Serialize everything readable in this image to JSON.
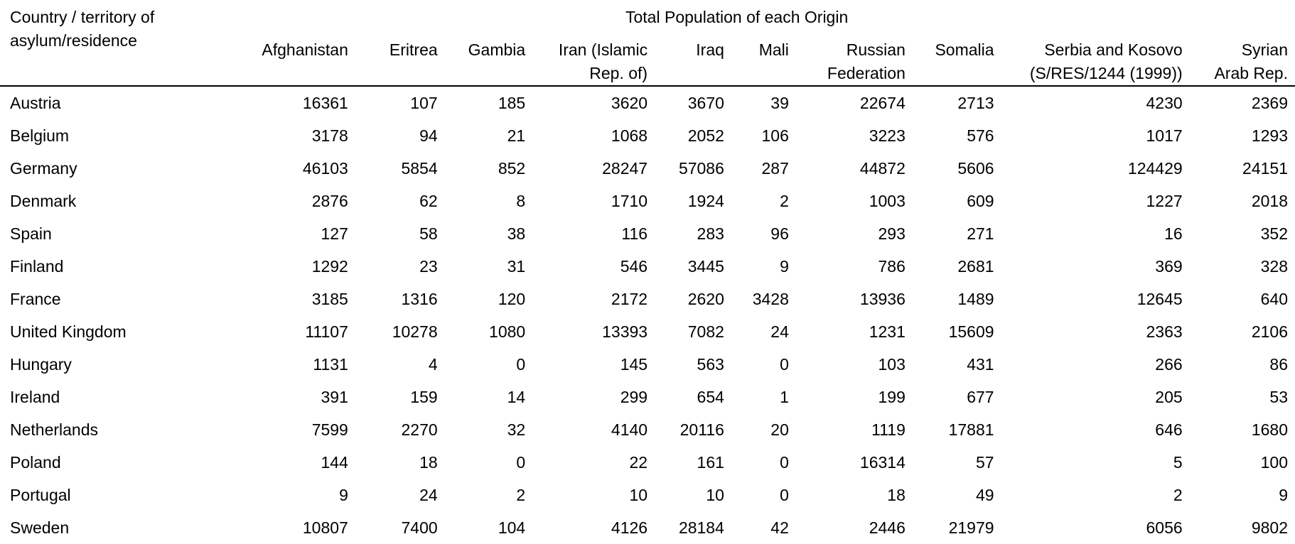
{
  "header": {
    "corner_label": "Country / territory of asylum/residence",
    "super_header": "Total Population of each Origin"
  },
  "columns": [
    "Afghanistan",
    "Eritrea",
    "Gambia",
    "Iran (Islamic Rep. of)",
    "Iraq",
    "Mali",
    "Russian Federation",
    "Somalia",
    "Serbia and Kosovo (S/RES/1244 (1999))",
    "Syrian Arab Rep."
  ],
  "rows": [
    {
      "country": "Austria",
      "values": [
        "16361",
        "107",
        "185",
        "3620",
        "3670",
        "39",
        "22674",
        "2713",
        "4230",
        "2369"
      ]
    },
    {
      "country": "Belgium",
      "values": [
        "3178",
        "94",
        "21",
        "1068",
        "2052",
        "106",
        "3223",
        "576",
        "1017",
        "1293"
      ]
    },
    {
      "country": "Germany",
      "values": [
        "46103",
        "5854",
        "852",
        "28247",
        "57086",
        "287",
        "44872",
        "5606",
        "124429",
        "24151"
      ]
    },
    {
      "country": "Denmark",
      "values": [
        "2876",
        "62",
        "8",
        "1710",
        "1924",
        "2",
        "1003",
        "609",
        "1227",
        "2018"
      ]
    },
    {
      "country": "Spain",
      "values": [
        "127",
        "58",
        "38",
        "116",
        "283",
        "96",
        "293",
        "271",
        "16",
        "352"
      ]
    },
    {
      "country": "Finland",
      "values": [
        "1292",
        "23",
        "31",
        "546",
        "3445",
        "9",
        "786",
        "2681",
        "369",
        "328"
      ]
    },
    {
      "country": "France",
      "values": [
        "3185",
        "1316",
        "120",
        "2172",
        "2620",
        "3428",
        "13936",
        "1489",
        "12645",
        "640"
      ]
    },
    {
      "country": "United Kingdom",
      "values": [
        "11107",
        "10278",
        "1080",
        "13393",
        "7082",
        "24",
        "1231",
        "15609",
        "2363",
        "2106"
      ]
    },
    {
      "country": "Hungary",
      "values": [
        "1131",
        "4",
        "0",
        "145",
        "563",
        "0",
        "103",
        "431",
        "266",
        "86"
      ]
    },
    {
      "country": "Ireland",
      "values": [
        "391",
        "159",
        "14",
        "299",
        "654",
        "1",
        "199",
        "677",
        "205",
        "53"
      ]
    },
    {
      "country": "Netherlands",
      "values": [
        "7599",
        "2270",
        "32",
        "4140",
        "20116",
        "20",
        "1119",
        "17881",
        "646",
        "1680"
      ]
    },
    {
      "country": "Poland",
      "values": [
        "144",
        "18",
        "0",
        "22",
        "161",
        "0",
        "16314",
        "57",
        "5",
        "100"
      ]
    },
    {
      "country": "Portugal",
      "values": [
        "9",
        "24",
        "2",
        "10",
        "10",
        "0",
        "18",
        "49",
        "2",
        "9"
      ]
    },
    {
      "country": "Sweden",
      "values": [
        "10807",
        "7400",
        "104",
        "4126",
        "28184",
        "42",
        "2446",
        "21979",
        "6056",
        "9802"
      ]
    }
  ]
}
